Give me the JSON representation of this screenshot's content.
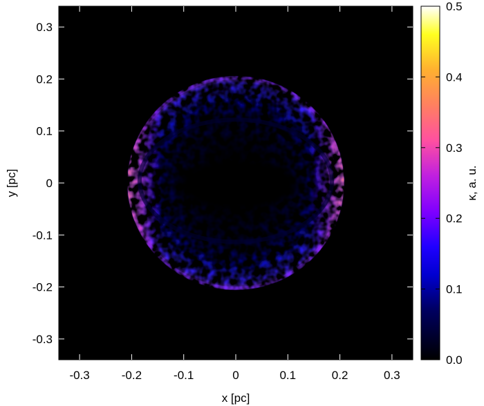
{
  "chart_data": {
    "type": "heatmap",
    "title": "",
    "xlabel": "x [pc]",
    "ylabel": "y [pc]",
    "xlim": [
      -0.34,
      0.34
    ],
    "ylim": [
      -0.34,
      0.34
    ],
    "x_ticks": [
      "-0.3",
      "-0.2",
      "-0.1",
      "0",
      "0.1",
      "0.2",
      "0.3"
    ],
    "y_ticks": [
      "-0.3",
      "-0.2",
      "-0.1",
      "0",
      "0.1",
      "0.2",
      "0.3"
    ],
    "x_tick_values": [
      -0.3,
      -0.2,
      -0.1,
      0,
      0.1,
      0.2,
      0.3
    ],
    "y_tick_values": [
      -0.3,
      -0.2,
      -0.1,
      0,
      0.1,
      0.2,
      0.3
    ],
    "colorbar": {
      "label": "κ, a. u.",
      "range": [
        0.0,
        0.5
      ],
      "ticks": [
        "0.0",
        "0.1",
        "0.2",
        "0.3",
        "0.4",
        "0.5"
      ],
      "tick_values": [
        0.0,
        0.1,
        0.2,
        0.3,
        0.4,
        0.5
      ],
      "colormap": [
        "#000000",
        "#0000a0",
        "#0000ff",
        "#8000ff",
        "#ff40c0",
        "#ffa040",
        "#ffff00",
        "#ffffff"
      ]
    },
    "features": {
      "shell_outer_radius_pc": 0.21,
      "inner_cavity_semi_axis_x_pc": 0.13,
      "inner_cavity_semi_axis_y_pc": 0.05,
      "peak_kappa_location": "left and right limbs (x ≈ ±0.2 pc)",
      "peak_kappa": 0.35,
      "shell_typical_kappa": 0.12
    },
    "grid": false,
    "legend": "colorbar-right"
  }
}
